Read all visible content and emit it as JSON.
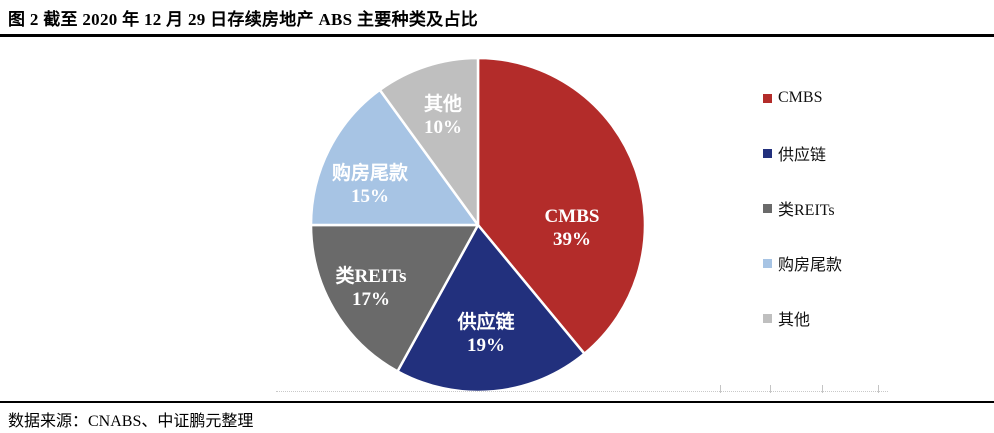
{
  "header": {
    "title": "图 2 截至 2020 年 12 月 29 日存续房地产 ABS 主要种类及占比"
  },
  "chart_data": {
    "type": "pie",
    "title": "图 2 截至 2020 年 12 月 29 日存续房地产 ABS 主要种类及占比",
    "categories": [
      "CMBS",
      "供应链",
      "类REITs",
      "购房尾款",
      "其他"
    ],
    "values": [
      39,
      19,
      17,
      15,
      10
    ],
    "value_unit": "%",
    "slice_colors": [
      "#B32C2A",
      "#22307D",
      "#6A6A6A",
      "#A7C4E4",
      "#BFBFBF"
    ],
    "data_label_color": "#FFFFFF",
    "start_angle_deg": 0,
    "direction": "clockwise",
    "legend_position": "right",
    "legend_entries": [
      "CMBS",
      "供应链",
      "类REITs",
      "购房尾款",
      "其他"
    ]
  },
  "footer": {
    "source": "数据来源：CNABS、中证鹏元整理"
  }
}
